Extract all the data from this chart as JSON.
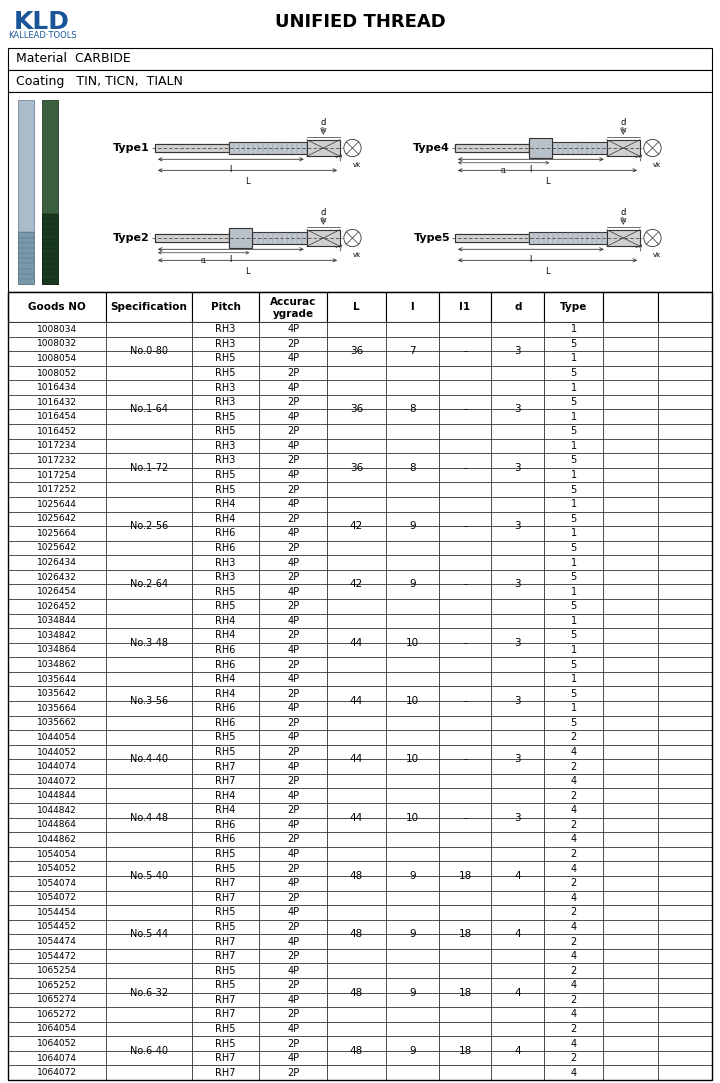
{
  "title": "UNIFIED THREAD",
  "material_label": "Material  CARBIDE",
  "coating_label": "Coating   TIN, TICN,  TIALN",
  "rows": [
    [
      "1008034",
      "No.0-80",
      "RH3",
      "4P",
      "36",
      "7",
      "-",
      "3",
      "1"
    ],
    [
      "1008032",
      "",
      "RH3",
      "2P",
      "",
      "",
      "",
      "",
      "5"
    ],
    [
      "1008054",
      "",
      "RH5",
      "4P",
      "",
      "",
      "",
      "",
      "1"
    ],
    [
      "1008052",
      "",
      "RH5",
      "2P",
      "",
      "",
      "",
      "",
      "5"
    ],
    [
      "1016434",
      "No.1-64",
      "RH3",
      "4P",
      "36",
      "8",
      "-",
      "3",
      "1"
    ],
    [
      "1016432",
      "",
      "RH3",
      "2P",
      "",
      "",
      "",
      "",
      "5"
    ],
    [
      "1016454",
      "",
      "RH5",
      "4P",
      "",
      "",
      "",
      "",
      "1"
    ],
    [
      "1016452",
      "",
      "RH5",
      "2P",
      "",
      "",
      "",
      "",
      "5"
    ],
    [
      "1017234",
      "No.1-72",
      "RH3",
      "4P",
      "36",
      "8",
      "-",
      "3",
      "1"
    ],
    [
      "1017232",
      "",
      "RH3",
      "2P",
      "",
      "",
      "",
      "",
      "5"
    ],
    [
      "1017254",
      "",
      "RH5",
      "4P",
      "",
      "",
      "",
      "",
      "1"
    ],
    [
      "1017252",
      "",
      "RH5",
      "2P",
      "",
      "",
      "",
      "",
      "5"
    ],
    [
      "1025644",
      "No.2-56",
      "RH4",
      "4P",
      "42",
      "9",
      "-",
      "3",
      "1"
    ],
    [
      "1025642",
      "",
      "RH4",
      "2P",
      "",
      "",
      "",
      "",
      "5"
    ],
    [
      "1025664",
      "",
      "RH6",
      "4P",
      "",
      "",
      "",
      "",
      "1"
    ],
    [
      "1025642",
      "",
      "RH6",
      "2P",
      "",
      "",
      "",
      "",
      "5"
    ],
    [
      "1026434",
      "No.2-64",
      "RH3",
      "4P",
      "42",
      "9",
      "-",
      "3",
      "1"
    ],
    [
      "1026432",
      "",
      "RH3",
      "2P",
      "",
      "",
      "",
      "",
      "5"
    ],
    [
      "1026454",
      "",
      "RH5",
      "4P",
      "",
      "",
      "",
      "",
      "1"
    ],
    [
      "1026452",
      "",
      "RH5",
      "2P",
      "",
      "",
      "",
      "",
      "5"
    ],
    [
      "1034844",
      "No.3-48",
      "RH4",
      "4P",
      "44",
      "10",
      "-",
      "3",
      "1"
    ],
    [
      "1034842",
      "",
      "RH4",
      "2P",
      "",
      "",
      "",
      "",
      "5"
    ],
    [
      "1034864",
      "",
      "RH6",
      "4P",
      "",
      "",
      "",
      "",
      "1"
    ],
    [
      "1034862",
      "",
      "RH6",
      "2P",
      "",
      "",
      "",
      "",
      "5"
    ],
    [
      "1035644",
      "No.3-56",
      "RH4",
      "4P",
      "44",
      "10",
      "-",
      "3",
      "1"
    ],
    [
      "1035642",
      "",
      "RH4",
      "2P",
      "",
      "",
      "",
      "",
      "5"
    ],
    [
      "1035664",
      "",
      "RH6",
      "4P",
      "",
      "",
      "",
      "",
      "1"
    ],
    [
      "1035662",
      "",
      "RH6",
      "2P",
      "",
      "",
      "",
      "",
      "5"
    ],
    [
      "1044054",
      "No.4-40",
      "RH5",
      "4P",
      "44",
      "10",
      "-",
      "3",
      "2"
    ],
    [
      "1044052",
      "",
      "RH5",
      "2P",
      "",
      "",
      "",
      "",
      "4"
    ],
    [
      "1044074",
      "",
      "RH7",
      "4P",
      "",
      "",
      "",
      "",
      "2"
    ],
    [
      "1044072",
      "",
      "RH7",
      "2P",
      "",
      "",
      "",
      "",
      "4"
    ],
    [
      "1044844",
      "No.4-48",
      "RH4",
      "4P",
      "44",
      "10",
      "-",
      "3",
      "2"
    ],
    [
      "1044842",
      "",
      "RH4",
      "2P",
      "",
      "",
      "",
      "",
      "4"
    ],
    [
      "1044864",
      "",
      "RH6",
      "4P",
      "",
      "",
      "",
      "",
      "2"
    ],
    [
      "1044862",
      "",
      "RH6",
      "2P",
      "",
      "",
      "",
      "",
      "4"
    ],
    [
      "1054054",
      "No.5-40",
      "RH5",
      "4P",
      "48",
      "9",
      "18",
      "4",
      "2"
    ],
    [
      "1054052",
      "",
      "RH5",
      "2P",
      "",
      "",
      "",
      "",
      "4"
    ],
    [
      "1054074",
      "",
      "RH7",
      "4P",
      "",
      "",
      "",
      "",
      "2"
    ],
    [
      "1054072",
      "",
      "RH7",
      "2P",
      "",
      "",
      "",
      "",
      "4"
    ],
    [
      "1054454",
      "No.5-44",
      "RH5",
      "4P",
      "48",
      "9",
      "18",
      "4",
      "2"
    ],
    [
      "1054452",
      "",
      "RH5",
      "2P",
      "",
      "",
      "",
      "",
      "4"
    ],
    [
      "1054474",
      "",
      "RH7",
      "4P",
      "",
      "",
      "",
      "",
      "2"
    ],
    [
      "1054472",
      "",
      "RH7",
      "2P",
      "",
      "",
      "",
      "",
      "4"
    ],
    [
      "1065254",
      "No.6-32",
      "RH5",
      "4P",
      "48",
      "9",
      "18",
      "4",
      "2"
    ],
    [
      "1065252",
      "",
      "RH5",
      "2P",
      "",
      "",
      "",
      "",
      "4"
    ],
    [
      "1065274",
      "",
      "RH7",
      "4P",
      "",
      "",
      "",
      "",
      "2"
    ],
    [
      "1065272",
      "",
      "RH7",
      "2P",
      "",
      "",
      "",
      "",
      "4"
    ],
    [
      "1064054",
      "No.6-40",
      "RH5",
      "4P",
      "48",
      "9",
      "18",
      "4",
      "2"
    ],
    [
      "1064052",
      "",
      "RH5",
      "2P",
      "",
      "",
      "",
      "",
      "4"
    ],
    [
      "1064074",
      "",
      "RH7",
      "4P",
      "",
      "",
      "",
      "",
      "2"
    ],
    [
      "1064072",
      "",
      "RH7",
      "2P",
      "",
      "",
      "",
      "",
      "4"
    ]
  ],
  "spec_groups": [
    [
      0,
      3,
      "No.0-80"
    ],
    [
      4,
      7,
      "No.1-64"
    ],
    [
      8,
      11,
      "No.1-72"
    ],
    [
      12,
      15,
      "No.2-56"
    ],
    [
      16,
      19,
      "No.2-64"
    ],
    [
      20,
      23,
      "No.3-48"
    ],
    [
      24,
      27,
      "No.3-56"
    ],
    [
      28,
      31,
      "No.4-40"
    ],
    [
      32,
      35,
      "No.4-48"
    ],
    [
      36,
      39,
      "No.5-40"
    ],
    [
      40,
      43,
      "No.5-44"
    ],
    [
      44,
      47,
      "No.6-32"
    ],
    [
      48,
      51,
      "No.6-40"
    ]
  ],
  "col_ratios": [
    0.112,
    0.097,
    0.077,
    0.077,
    0.067,
    0.06,
    0.06,
    0.06,
    0.067,
    0.062,
    0.062
  ],
  "header_labels": [
    "Goods NO",
    "Specification",
    "Pitch",
    "Accurac\nygrade",
    "L",
    "l",
    "I1",
    "d",
    "Type",
    "",
    ""
  ],
  "page_bg": "#ffffff",
  "border_color": "#000000",
  "tap1_body_color": "#aabccc",
  "tap1_thread_color": "#7799aa",
  "tap2_body_color": "#3a6040",
  "tap2_thread_color": "#1a3a20",
  "diagram_line_color": "#555555",
  "kld_color": "#1a5599"
}
